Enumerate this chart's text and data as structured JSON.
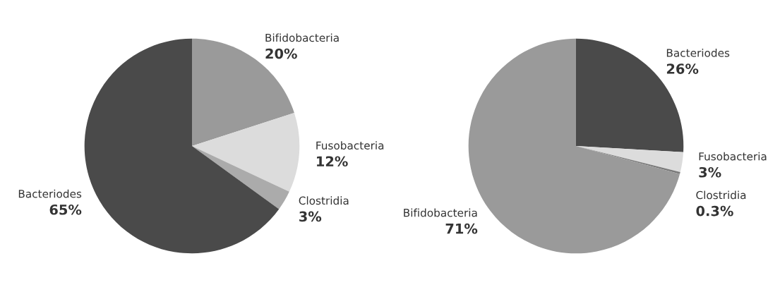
{
  "chart_data": [
    {
      "type": "pie",
      "categories": [
        "Bifidobacteria",
        "Fusobacteria",
        "Clostridia",
        "Bacteriodes"
      ],
      "values": [
        20,
        12,
        3,
        65
      ],
      "value_labels": [
        "20%",
        "12%",
        "3%",
        "65%"
      ],
      "colors": [
        "#9a9a9a",
        "#dcdcdc",
        "#ababab",
        "#4a4a4a"
      ]
    },
    {
      "type": "pie",
      "categories": [
        "Bacteriodes",
        "Fusobacteria",
        "Clostridia",
        "Bifidobacteria"
      ],
      "values": [
        26,
        3,
        0.3,
        71
      ],
      "value_labels": [
        "26%",
        "3%",
        "0.3%",
        "71%"
      ],
      "colors": [
        "#4a4a4a",
        "#dcdcdc",
        "#7a7a7a",
        "#9a9a9a"
      ]
    }
  ]
}
